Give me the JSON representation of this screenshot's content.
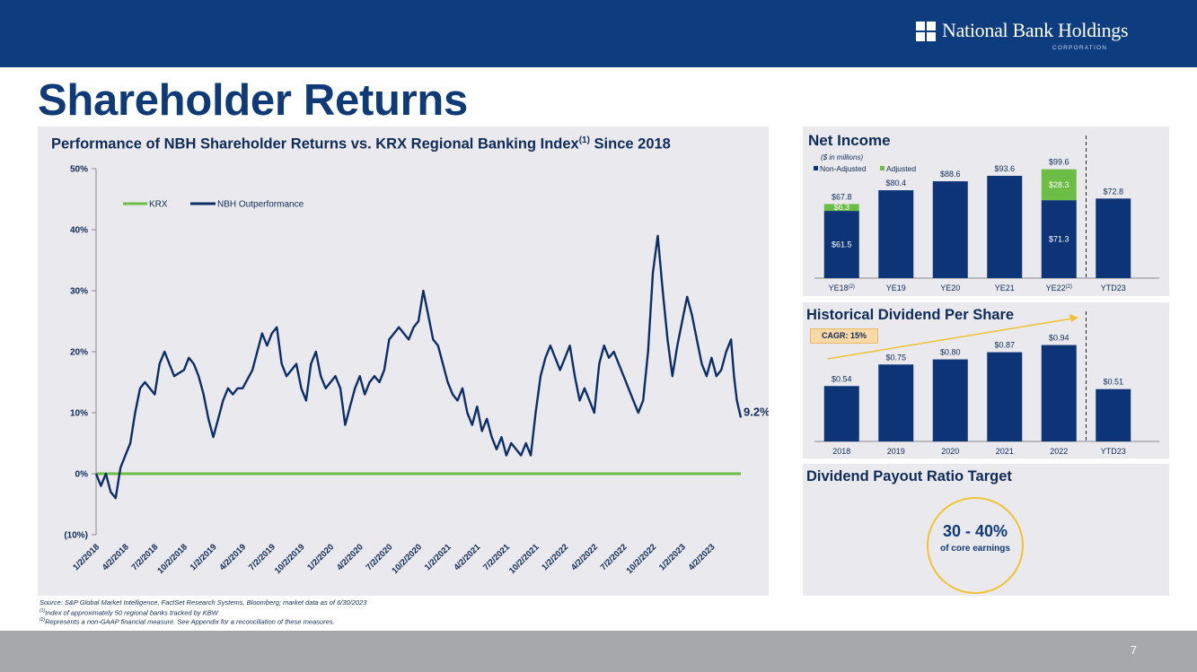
{
  "header": {
    "logo_text": "National Bank Holdings",
    "logo_subtext": "CORPORATION",
    "page_title": "Shareholder Returns",
    "page_number": "7"
  },
  "colors": {
    "navy": "#0d3d7e",
    "krx_green": "#6cbd45",
    "nbh_line": "#0c2e66",
    "bar_navy": "#0c3477",
    "bar_green": "#6cbd45",
    "gold": "#f1c232"
  },
  "performance_chart": {
    "title": "Performance of NBH Shareholder Returns vs. KRX Regional Banking Index",
    "title_sup": "(1)",
    "title_suffix": " Since 2018",
    "end_label": "9.2%"
  },
  "net_income": {
    "title": "Net Income",
    "subtitle": "($ in millions)"
  },
  "dividend": {
    "title": "Historical Dividend Per Share",
    "cagr_label": "CAGR: 15%"
  },
  "payout": {
    "title": "Dividend Payout Ratio Target",
    "value": "30 - 40%",
    "caption": "of core earnings"
  },
  "footnotes": {
    "source": "Source: S&P Global Market Intelligence, FactSet Research Systems, Bloomberg; market data as of 6/30/2023",
    "note1_sup": "(1)",
    "note1": "Index of approximately 50 regional banks tracked by KBW",
    "note2_sup": "(2)",
    "note2": "Represents a non-GAAP financial measure.  See Appendix for a reconciliation of these measures."
  },
  "chart_data": [
    {
      "type": "line",
      "title": "Performance of NBH Shareholder Returns vs. KRX Regional Banking Index(1) Since 2018",
      "xlabel": "",
      "ylabel": "",
      "ylim": [
        -10,
        50
      ],
      "yticks": [
        {
          "value": 50,
          "label": "50%"
        },
        {
          "value": 40,
          "label": "40%"
        },
        {
          "value": 30,
          "label": "30%"
        },
        {
          "value": 20,
          "label": "20%"
        },
        {
          "value": 10,
          "label": "10%"
        },
        {
          "value": 0,
          "label": "0%"
        },
        {
          "value": -10,
          "label": "(10%)"
        }
      ],
      "xlim": [
        0,
        66
      ],
      "xticks": [
        {
          "month": 0,
          "label": "1/2/2018"
        },
        {
          "month": 3,
          "label": "4/2/2018"
        },
        {
          "month": 6,
          "label": "7/2/2018"
        },
        {
          "month": 9,
          "label": "10/2/2018"
        },
        {
          "month": 12,
          "label": "1/2/2019"
        },
        {
          "month": 15,
          "label": "4/2/2019"
        },
        {
          "month": 18,
          "label": "7/2/2019"
        },
        {
          "month": 21,
          "label": "10/2/2019"
        },
        {
          "month": 24,
          "label": "1/2/2020"
        },
        {
          "month": 27,
          "label": "4/2/2020"
        },
        {
          "month": 30,
          "label": "7/2/2020"
        },
        {
          "month": 33,
          "label": "10/2/2020"
        },
        {
          "month": 36,
          "label": "1/2/2021"
        },
        {
          "month": 39,
          "label": "4/2/2021"
        },
        {
          "month": 42,
          "label": "7/2/2021"
        },
        {
          "month": 45,
          "label": "10/2/2021"
        },
        {
          "month": 48,
          "label": "1/2/2022"
        },
        {
          "month": 51,
          "label": "4/2/2022"
        },
        {
          "month": 54,
          "label": "7/2/2022"
        },
        {
          "month": 57,
          "label": "10/2/2022"
        },
        {
          "month": 60,
          "label": "1/2/2023"
        },
        {
          "month": 63,
          "label": "4/2/2023"
        }
      ],
      "legend": [
        "KRX",
        "NBH Outperformance"
      ],
      "legend_position": "top-left",
      "series": [
        {
          "name": "KRX",
          "points": [
            [
              0,
              0
            ],
            [
              66,
              0
            ]
          ]
        },
        {
          "name": "NBH Outperformance",
          "points": [
            [
              0,
              0
            ],
            [
              0.5,
              -2
            ],
            [
              1,
              0
            ],
            [
              1.5,
              -3
            ],
            [
              2,
              -4
            ],
            [
              2.5,
              1
            ],
            [
              3,
              3
            ],
            [
              3.5,
              5
            ],
            [
              4,
              10
            ],
            [
              4.5,
              14
            ],
            [
              5,
              15
            ],
            [
              5.5,
              14
            ],
            [
              6,
              13
            ],
            [
              6.5,
              18
            ],
            [
              7,
              20
            ],
            [
              7.5,
              18
            ],
            [
              8,
              16
            ],
            [
              9,
              17
            ],
            [
              9.5,
              19
            ],
            [
              10,
              18
            ],
            [
              10.5,
              16
            ],
            [
              11,
              13
            ],
            [
              11.5,
              9
            ],
            [
              12,
              6
            ],
            [
              12.5,
              9
            ],
            [
              13,
              12
            ],
            [
              13.5,
              14
            ],
            [
              14,
              13
            ],
            [
              14.5,
              14
            ],
            [
              15,
              14
            ],
            [
              16,
              17
            ],
            [
              17,
              23
            ],
            [
              17.5,
              21
            ],
            [
              18,
              23
            ],
            [
              18.5,
              24
            ],
            [
              19,
              18
            ],
            [
              19.5,
              16
            ],
            [
              20,
              17
            ],
            [
              20.5,
              18
            ],
            [
              21,
              14
            ],
            [
              21.5,
              12
            ],
            [
              22,
              18
            ],
            [
              22.5,
              20
            ],
            [
              23,
              16
            ],
            [
              23.5,
              14
            ],
            [
              24,
              15
            ],
            [
              24.5,
              16
            ],
            [
              25,
              14
            ],
            [
              25.5,
              8
            ],
            [
              26,
              11
            ],
            [
              26.5,
              14
            ],
            [
              27,
              16
            ],
            [
              27.5,
              13
            ],
            [
              28,
              15
            ],
            [
              28.5,
              16
            ],
            [
              29,
              15
            ],
            [
              29.5,
              17
            ],
            [
              30,
              22
            ],
            [
              30.5,
              23
            ],
            [
              31,
              24
            ],
            [
              31.5,
              23
            ],
            [
              32,
              22
            ],
            [
              32.5,
              24
            ],
            [
              33,
              25
            ],
            [
              33.5,
              30
            ],
            [
              34,
              26
            ],
            [
              34.5,
              22
            ],
            [
              35,
              21
            ],
            [
              35.5,
              18
            ],
            [
              36,
              15
            ],
            [
              36.5,
              13
            ],
            [
              37,
              12
            ],
            [
              37.5,
              14
            ],
            [
              38,
              10
            ],
            [
              38.5,
              8
            ],
            [
              39,
              11
            ],
            [
              39.5,
              7
            ],
            [
              40,
              9
            ],
            [
              40.5,
              6
            ],
            [
              41,
              4
            ],
            [
              41.5,
              6
            ],
            [
              42,
              3
            ],
            [
              42.5,
              5
            ],
            [
              43,
              4
            ],
            [
              43.5,
              3
            ],
            [
              44,
              5
            ],
            [
              44.5,
              3
            ],
            [
              45,
              10
            ],
            [
              45.5,
              16
            ],
            [
              46,
              19
            ],
            [
              46.5,
              21
            ],
            [
              47,
              19
            ],
            [
              47.5,
              17
            ],
            [
              48,
              19
            ],
            [
              48.5,
              21
            ],
            [
              49,
              16
            ],
            [
              49.5,
              12
            ],
            [
              50,
              14
            ],
            [
              50.5,
              12
            ],
            [
              51,
              10
            ],
            [
              51.5,
              18
            ],
            [
              52,
              21
            ],
            [
              52.5,
              19
            ],
            [
              53,
              20
            ],
            [
              53.5,
              18
            ],
            [
              54,
              16
            ],
            [
              54.5,
              14
            ],
            [
              55,
              12
            ],
            [
              55.5,
              10
            ],
            [
              56,
              12
            ],
            [
              56.5,
              20
            ],
            [
              57,
              33
            ],
            [
              57.5,
              39
            ],
            [
              58,
              30
            ],
            [
              58.5,
              22
            ],
            [
              59,
              16
            ],
            [
              59.5,
              21
            ],
            [
              60,
              25
            ],
            [
              60.5,
              29
            ],
            [
              61,
              26
            ],
            [
              61.5,
              22
            ],
            [
              62,
              18
            ],
            [
              62.5,
              16
            ],
            [
              63,
              19
            ],
            [
              63.5,
              16
            ],
            [
              64,
              17
            ],
            [
              64.5,
              20
            ],
            [
              65,
              22
            ],
            [
              65.3,
              16
            ],
            [
              65.6,
              12
            ],
            [
              66,
              9.2
            ]
          ]
        }
      ]
    },
    {
      "type": "bar",
      "title": "Net Income",
      "subtitle": "($ in millions)",
      "categories": [
        "YE18",
        "YE19",
        "YE20",
        "YE21",
        "YE22",
        "YTD23"
      ],
      "category_sups": [
        "(2)",
        "",
        "",
        "",
        "(2)",
        ""
      ],
      "ylim": [
        0,
        110
      ],
      "legend": [
        "Non-Adjusted",
        "Adjusted"
      ],
      "legend_position": "top-left",
      "stacked": true,
      "series": [
        {
          "name": "Non-Adjusted",
          "values": [
            61.5,
            80.4,
            88.6,
            93.6,
            71.3,
            72.8
          ]
        },
        {
          "name": "Adjusted",
          "values": [
            6.3,
            0,
            0,
            0,
            28.3,
            0
          ]
        }
      ],
      "totals": [
        67.8,
        80.4,
        88.6,
        93.6,
        99.6,
        72.8
      ],
      "total_labels": [
        "$67.8",
        "$80.4",
        "$88.6",
        "$93.6",
        "$99.6",
        "$72.8"
      ],
      "segment_labels": [
        {
          "index": 0,
          "series": "Non-Adjusted",
          "label": "$61.5"
        },
        {
          "index": 0,
          "series": "Adjusted",
          "label": "$6.3"
        },
        {
          "index": 4,
          "series": "Non-Adjusted",
          "label": "$71.3"
        },
        {
          "index": 4,
          "series": "Adjusted",
          "label": "$28.3"
        }
      ],
      "divider_after_index": 4
    },
    {
      "type": "bar",
      "title": "Historical Dividend Per Share",
      "categories": [
        "2018",
        "2019",
        "2020",
        "2021",
        "2022",
        "YTD23"
      ],
      "ylim": [
        0,
        1.05
      ],
      "values": [
        0.54,
        0.75,
        0.8,
        0.87,
        0.94,
        0.51
      ],
      "value_labels": [
        "$0.54",
        "$0.75",
        "$0.80",
        "$0.87",
        "$0.94",
        "$0.51"
      ],
      "annotation": "CAGR: 15%",
      "divider_after_index": 4
    }
  ]
}
